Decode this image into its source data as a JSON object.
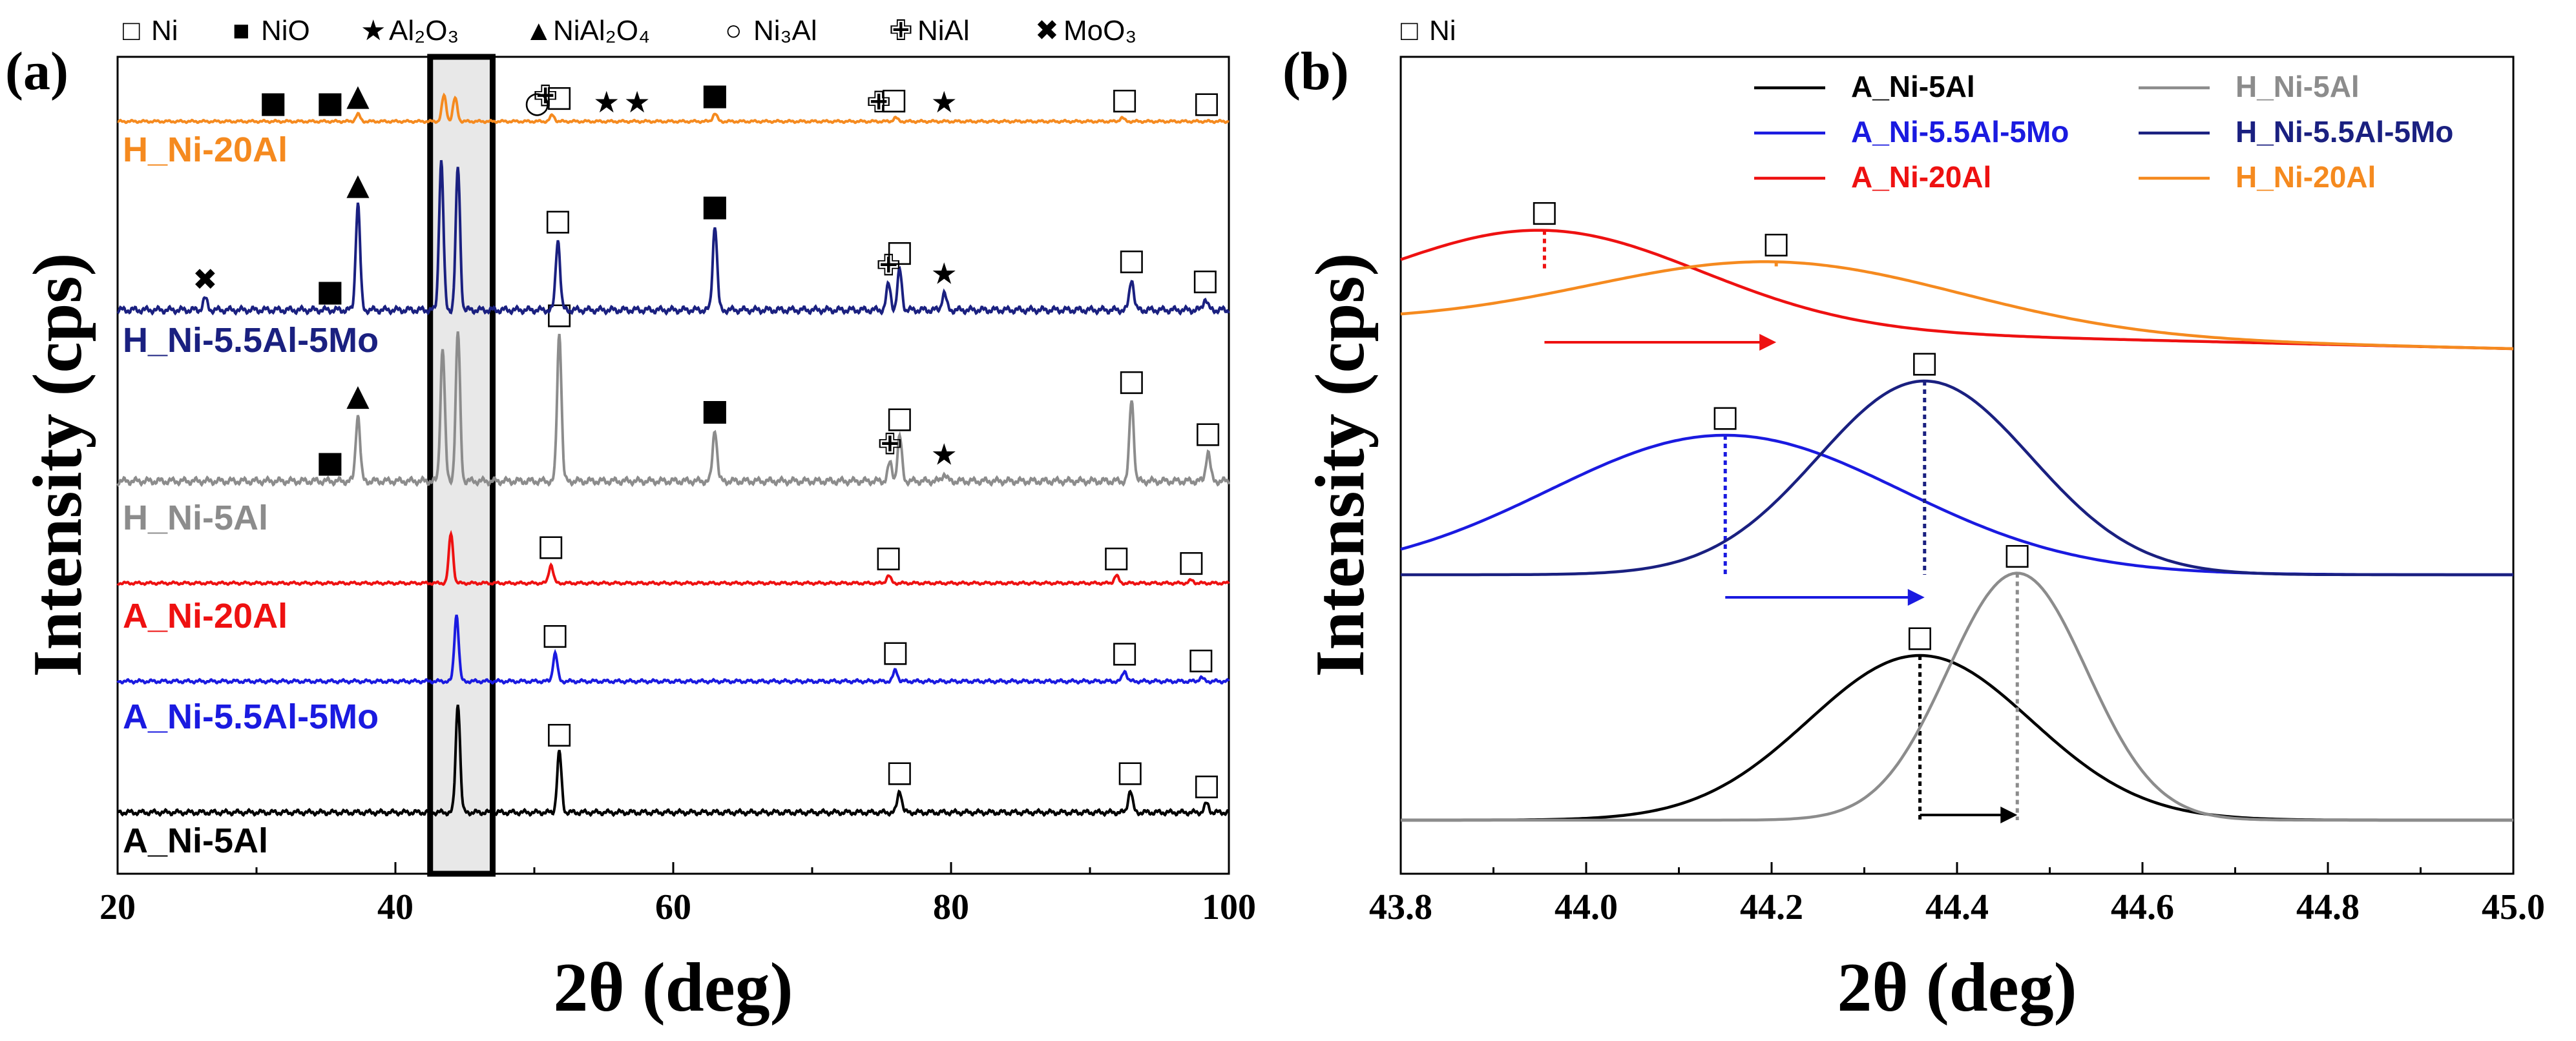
{
  "chart_data": [
    {
      "panel": "(a)",
      "type": "line",
      "xlabel": "2θ (deg)",
      "ylabel": "Intensity (cps)",
      "xlim": [
        20,
        100
      ],
      "xticks": [
        "20",
        "40",
        "60",
        "80",
        "100"
      ],
      "highlight_range": [
        42.5,
        47.0
      ],
      "phase_legend": [
        {
          "symbol": "□",
          "name": "Ni"
        },
        {
          "symbol": "■",
          "name": "NiO"
        },
        {
          "symbol": "★",
          "name": "Al2O3"
        },
        {
          "symbol": "▲",
          "name": "NiAl2O4"
        },
        {
          "symbol": "○",
          "name": "Ni3Al"
        },
        {
          "symbol": "✙",
          "name": "NiAl"
        },
        {
          "symbol": "✖",
          "name": "MoO3"
        }
      ],
      "series": [
        {
          "name": "A_Ni-5Al",
          "color": "#000000",
          "offset": 0,
          "peaks": [
            [
              44.5,
              1.0
            ],
            [
              51.8,
              0.55
            ],
            [
              76.3,
              0.2
            ],
            [
              92.9,
              0.2
            ],
            [
              98.4,
              0.08
            ]
          ],
          "markers": [
            [
              "□",
              51.8
            ],
            [
              "□",
              76.3
            ],
            [
              "□",
              92.9
            ],
            [
              "□",
              98.4
            ]
          ]
        },
        {
          "name": "A_Ni-5.5Al-5Mo",
          "color": "#1a1ae0",
          "offset": 1,
          "peaks": [
            [
              44.4,
              0.9
            ],
            [
              51.5,
              0.38
            ],
            [
              76.0,
              0.15
            ],
            [
              92.5,
              0.14
            ],
            [
              98.0,
              0.05
            ]
          ],
          "markers": [
            [
              "□",
              51.5
            ],
            [
              "□",
              76.0
            ],
            [
              "□",
              92.5
            ],
            [
              "□",
              98.0
            ]
          ]
        },
        {
          "name": "A_Ni-20Al",
          "color": "#ee1111",
          "offset": 2,
          "peaks": [
            [
              44.0,
              0.85
            ],
            [
              51.2,
              0.32
            ],
            [
              75.5,
              0.13
            ],
            [
              91.9,
              0.13
            ],
            [
              97.3,
              0.05
            ]
          ],
          "markers": [
            [
              "□",
              51.2
            ],
            [
              "□",
              75.5
            ],
            [
              "□",
              91.9
            ],
            [
              "□",
              97.3
            ]
          ]
        },
        {
          "name": "H_Ni-5Al",
          "color": "#8c8c8c",
          "offset": 3,
          "peaks": [
            [
              37.3,
              0.45
            ],
            [
              43.4,
              0.9
            ],
            [
              44.5,
              1.0
            ],
            [
              51.8,
              1.0
            ],
            [
              63.0,
              0.35
            ],
            [
              75.6,
              0.12
            ],
            [
              76.3,
              0.3
            ],
            [
              79.5,
              0.05
            ],
            [
              93.0,
              0.55
            ],
            [
              98.5,
              0.2
            ]
          ],
          "markers": [
            [
              "■",
              35.3
            ],
            [
              "▲",
              37.3
            ],
            [
              "□",
              51.8
            ],
            [
              "■",
              63.0
            ],
            [
              "✙",
              75.6
            ],
            [
              "□",
              76.3
            ],
            [
              "★",
              79.5
            ],
            [
              "□",
              93.0
            ],
            [
              "□",
              98.5
            ]
          ]
        },
        {
          "name": "H_Ni-5.5Al-5Mo",
          "color": "#1a2080",
          "offset": 4,
          "peaks": [
            [
              26.3,
              0.08
            ],
            [
              37.3,
              0.75
            ],
            [
              43.3,
              1.05
            ],
            [
              44.5,
              1.0
            ],
            [
              51.7,
              0.5
            ],
            [
              63.0,
              0.6
            ],
            [
              75.5,
              0.18
            ],
            [
              76.3,
              0.28
            ],
            [
              79.5,
              0.12
            ],
            [
              93.0,
              0.22
            ],
            [
              98.3,
              0.08
            ]
          ],
          "markers": [
            [
              "✖",
              26.3
            ],
            [
              "■",
              35.3
            ],
            [
              "▲",
              37.3
            ],
            [
              "□",
              51.7
            ],
            [
              "■",
              63.0
            ],
            [
              "✙",
              75.5
            ],
            [
              "□",
              76.3
            ],
            [
              "★",
              79.5
            ],
            [
              "□",
              93.0
            ],
            [
              "□",
              98.3
            ]
          ]
        },
        {
          "name": "H_Ni-20Al",
          "color": "#f58a1f",
          "offset": 5,
          "peaks": [
            [
              37.3,
              0.14
            ],
            [
              43.5,
              0.5
            ],
            [
              44.3,
              0.45
            ],
            [
              51.3,
              0.12
            ],
            [
              63.0,
              0.15
            ],
            [
              76.0,
              0.07
            ],
            [
              92.3,
              0.07
            ]
          ],
          "markers": [
            [
              "■",
              31.2
            ],
            [
              "■",
              35.3
            ],
            [
              "▲",
              37.3
            ],
            [
              "○",
              50.2
            ],
            [
              "✙",
              50.8
            ],
            [
              "□",
              51.8
            ],
            [
              "★",
              55.2
            ],
            [
              "★",
              57.4
            ],
            [
              "■",
              63.0
            ],
            [
              "✙",
              74.8
            ],
            [
              "□",
              75.9
            ],
            [
              "★",
              79.5
            ],
            [
              "□",
              92.5
            ],
            [
              "□",
              98.4
            ]
          ]
        }
      ]
    },
    {
      "panel": "(b)",
      "type": "line",
      "xlabel": "2θ (deg)",
      "ylabel": "Intensity (cps)",
      "xlim": [
        43.8,
        45.0
      ],
      "xticks": [
        "43.8",
        "44.0",
        "44.2",
        "44.4",
        "44.6",
        "44.8",
        "45.0"
      ],
      "marker_legend": "Ni",
      "series": [
        {
          "name": "A_Ni-5Al",
          "color": "#000000",
          "group": 0,
          "center": 44.36,
          "width": 0.12,
          "amplitude": 1.0
        },
        {
          "name": "H_Ni-5Al",
          "color": "#8c8c8c",
          "group": 0,
          "center": 44.465,
          "width": 0.075,
          "amplitude": 1.5
        },
        {
          "name": "A_Ni-5.5Al-5Mo",
          "color": "#1a1ae0",
          "group": 1,
          "center": 44.15,
          "width": 0.19,
          "amplitude": 0.72
        },
        {
          "name": "H_Ni-5.5Al-5Mo",
          "color": "#1a2080",
          "group": 1,
          "center": 44.365,
          "width": 0.115,
          "amplitude": 1.0
        },
        {
          "name": "A_Ni-20Al",
          "color": "#ee1111",
          "group": 2,
          "center": 43.955,
          "width": 0.17,
          "amplitude": 0.55
        },
        {
          "name": "H_Ni-20Al",
          "color": "#f58a1f",
          "group": 2,
          "center": 44.205,
          "width": 0.2,
          "amplitude": 0.4
        }
      ],
      "shift_arrows": [
        {
          "from": 43.955,
          "to": 44.205,
          "color": "#ee1111"
        },
        {
          "from": 44.15,
          "to": 44.365,
          "color": "#1a1ae0"
        },
        {
          "from": 44.36,
          "to": 44.465,
          "color": "#000000"
        }
      ]
    }
  ]
}
